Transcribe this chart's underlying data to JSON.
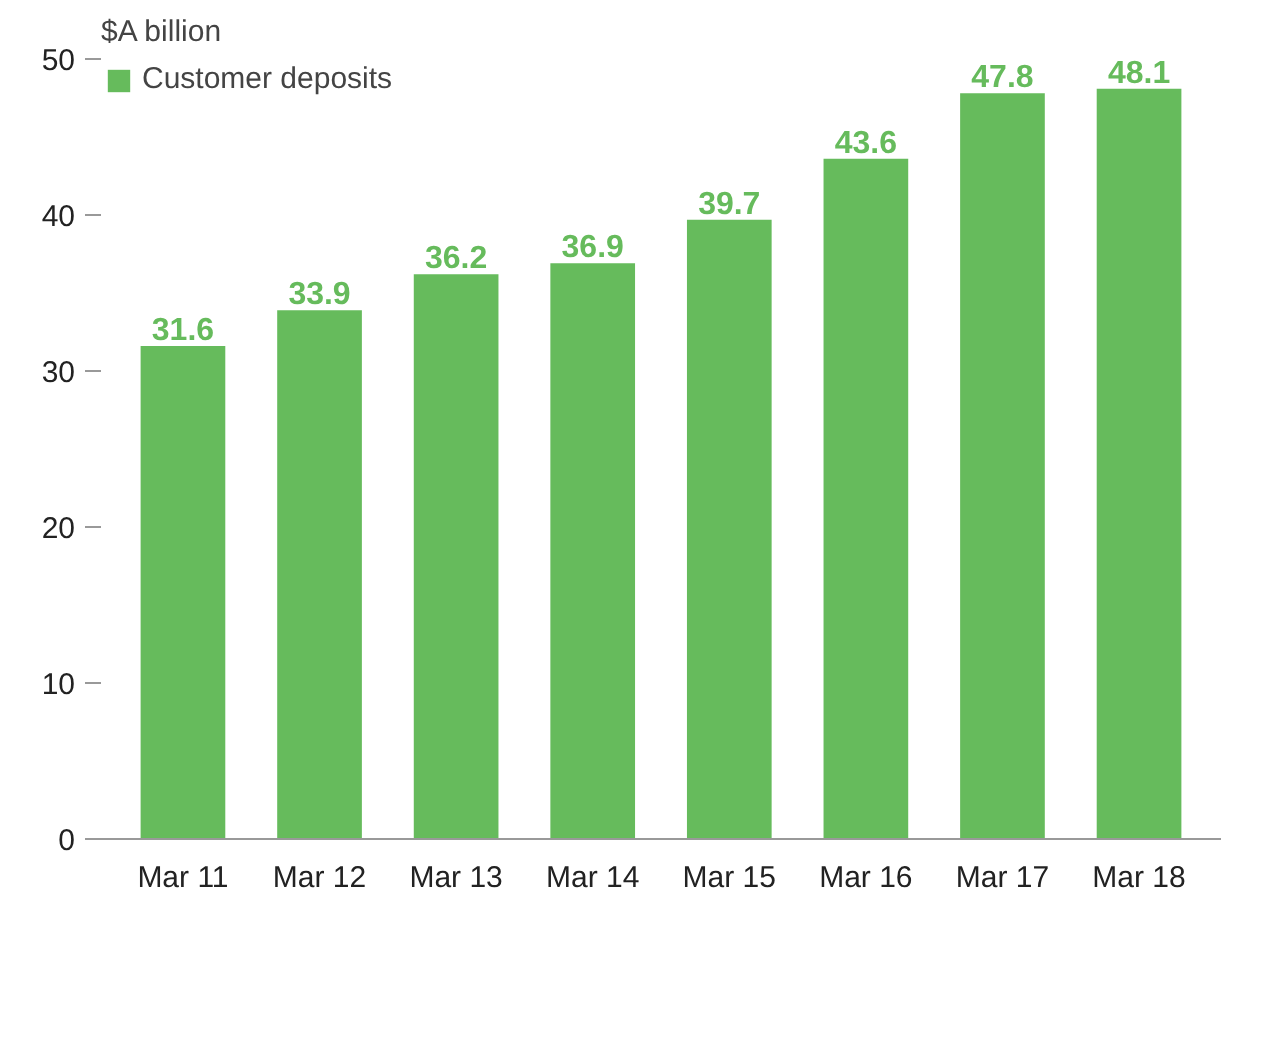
{
  "chart_data": {
    "type": "bar",
    "ylabel": "$A billion",
    "categories": [
      "Mar 11",
      "Mar 12",
      "Mar 13",
      "Mar 14",
      "Mar 15",
      "Mar 16",
      "Mar 17",
      "Mar 18"
    ],
    "series": [
      {
        "name": "Customer deposits",
        "color": "#66bb5c",
        "values": [
          31.6,
          33.9,
          36.2,
          36.9,
          39.7,
          43.6,
          47.8,
          48.1
        ]
      }
    ],
    "ylim": [
      0,
      50
    ],
    "yticks": [
      0,
      10,
      20,
      30,
      40,
      50
    ],
    "data_labels": true,
    "grid": false,
    "legend": "top left"
  }
}
